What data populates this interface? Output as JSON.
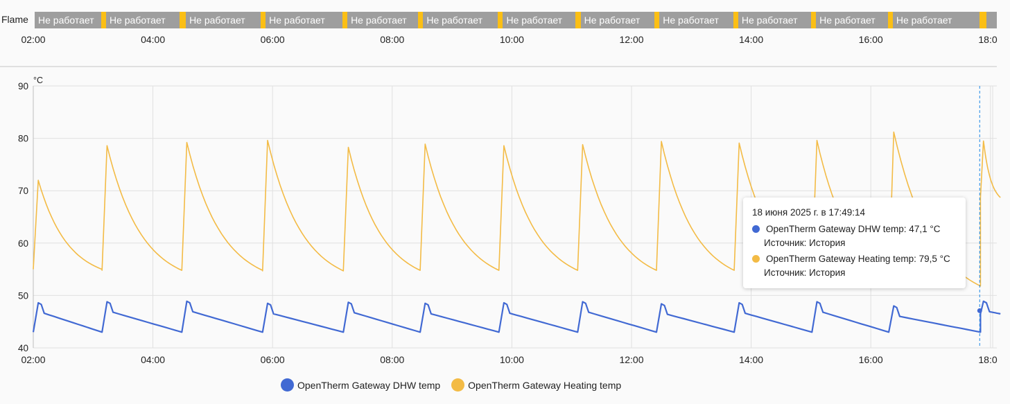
{
  "timeline": {
    "entity_label": "Flame",
    "state_off": "Не работает",
    "off_color": "#9e9e9e",
    "on_color": "#fbbf15",
    "x_ticks": [
      "02:00",
      "04:00",
      "06:00",
      "08:00",
      "10:00",
      "12:00",
      "14:00",
      "16:00",
      "18:0"
    ],
    "on_periods": [
      [
        "03:08",
        "03:13"
      ],
      [
        "04:27",
        "04:33"
      ],
      [
        "05:48",
        "05:53"
      ],
      [
        "07:10",
        "07:15"
      ],
      [
        "08:26",
        "08:31"
      ],
      [
        "09:46",
        "09:51"
      ],
      [
        "11:04",
        "11:09"
      ],
      [
        "12:23",
        "12:28"
      ],
      [
        "13:42",
        "13:47"
      ],
      [
        "15:00",
        "15:05"
      ],
      [
        "16:17",
        "16:22"
      ],
      [
        "17:49",
        "17:56"
      ]
    ]
  },
  "chart_data": {
    "type": "line",
    "title": "",
    "xlabel": "",
    "ylabel": "°C",
    "x_range": [
      "02:00",
      "18:10"
    ],
    "ylim": [
      40,
      90
    ],
    "y_ticks": [
      40,
      50,
      60,
      70,
      80,
      90
    ],
    "x_ticks": [
      "02:00",
      "04:00",
      "06:00",
      "08:00",
      "10:00",
      "12:00",
      "14:00",
      "16:00",
      "18:0"
    ],
    "grid": true,
    "legend_position": "bottom",
    "cursor_time": "17:49",
    "cursor_values": [
      47.1,
      79.5
    ],
    "series": [
      {
        "name": "OpenTherm Gateway DHW temp",
        "color": "#4169d3",
        "cycles": [
          {
            "start": "02:00",
            "min": 43.0,
            "peak": 48.6
          },
          {
            "start": "03:09",
            "min": 43.0,
            "peak": 48.8
          },
          {
            "start": "04:29",
            "min": 43.0,
            "peak": 48.9
          },
          {
            "start": "05:50",
            "min": 43.0,
            "peak": 48.5
          },
          {
            "start": "07:11",
            "min": 43.0,
            "peak": 48.7
          },
          {
            "start": "08:28",
            "min": 43.0,
            "peak": 48.5
          },
          {
            "start": "09:47",
            "min": 43.0,
            "peak": 48.6
          },
          {
            "start": "11:06",
            "min": 43.0,
            "peak": 48.8
          },
          {
            "start": "12:25",
            "min": 43.0,
            "peak": 48.4
          },
          {
            "start": "13:43",
            "min": 43.0,
            "peak": 48.6
          },
          {
            "start": "15:01",
            "min": 43.0,
            "peak": 48.8
          },
          {
            "start": "16:18",
            "min": 43.0,
            "peak": 48.0
          },
          {
            "start": "17:50",
            "min": 46.5,
            "peak": 48.9
          }
        ]
      },
      {
        "name": "OpenTherm Gateway Heating temp",
        "color": "#f3bb45",
        "cycles": [
          {
            "start": "02:00",
            "min": 55.0,
            "peak": 72.0
          },
          {
            "start": "03:09",
            "min": 54.8,
            "peak": 78.6
          },
          {
            "start": "04:29",
            "min": 54.8,
            "peak": 79.2
          },
          {
            "start": "05:50",
            "min": 54.7,
            "peak": 79.6
          },
          {
            "start": "07:11",
            "min": 54.8,
            "peak": 78.3
          },
          {
            "start": "08:28",
            "min": 54.8,
            "peak": 78.9
          },
          {
            "start": "09:47",
            "min": 54.8,
            "peak": 78.6
          },
          {
            "start": "11:06",
            "min": 54.8,
            "peak": 78.8
          },
          {
            "start": "12:25",
            "min": 54.8,
            "peak": 79.4
          },
          {
            "start": "13:43",
            "min": 54.8,
            "peak": 79.1
          },
          {
            "start": "15:01",
            "min": 54.8,
            "peak": 79.6
          },
          {
            "start": "16:18",
            "min": 51.8,
            "peak": 81.2
          },
          {
            "start": "17:50",
            "min": 68.7,
            "peak": 79.5
          }
        ]
      }
    ]
  },
  "tooltip": {
    "title": "18 июня 2025 г. в 17:49:14",
    "rows": [
      {
        "text": "OpenTherm Gateway DHW temp: 47,1 °C",
        "source": "Источник: История",
        "color": "#4169d3"
      },
      {
        "text": "OpenTherm Gateway Heating temp: 79,5 °C",
        "source": "Источник: История",
        "color": "#f3bb45"
      }
    ]
  },
  "legend": [
    {
      "label": "OpenTherm Gateway DHW temp",
      "color": "#4169d3"
    },
    {
      "label": "OpenTherm Gateway Heating temp",
      "color": "#f3bb45"
    }
  ]
}
